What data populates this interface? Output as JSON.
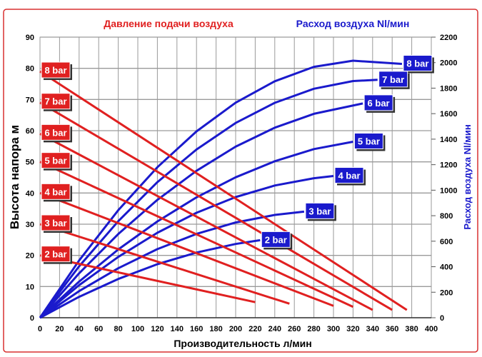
{
  "chart_data": {
    "type": "line",
    "title_left": "Давление подачи воздуха",
    "title_right": "Расход воздуха Nl/мин",
    "xlabel": "Производительность л/мин",
    "ylabel": "Высота напора м",
    "y2label": "Расход воздуха Nl/мин",
    "xlim": [
      0,
      400
    ],
    "ylim": [
      0,
      90
    ],
    "y2lim": [
      0,
      2200
    ],
    "grid": true,
    "x_ticks": [
      0,
      20,
      40,
      60,
      80,
      100,
      120,
      140,
      160,
      180,
      200,
      220,
      240,
      260,
      280,
      300,
      320,
      340,
      360,
      380,
      400
    ],
    "y_ticks": [
      0,
      10,
      20,
      30,
      40,
      50,
      60,
      70,
      80,
      90
    ],
    "y2_ticks": [
      0,
      200,
      400,
      600,
      800,
      1000,
      1200,
      1400,
      1600,
      1800,
      2000,
      2200
    ],
    "colors": {
      "head": "#e02020",
      "air": "#1a1acc",
      "frame": "#d83030"
    },
    "head_series": [
      {
        "name": "8 bar",
        "points": [
          [
            0,
            79
          ],
          [
            375,
            2.5
          ]
        ]
      },
      {
        "name": "7 bar",
        "points": [
          [
            0,
            69
          ],
          [
            360,
            2.5
          ]
        ]
      },
      {
        "name": "6 bar",
        "points": [
          [
            0,
            59
          ],
          [
            340,
            2.5
          ]
        ]
      },
      {
        "name": "5 bar",
        "points": [
          [
            0,
            50
          ],
          [
            320,
            3.5
          ]
        ]
      },
      {
        "name": "4 bar",
        "points": [
          [
            0,
            40
          ],
          [
            300,
            3.8
          ]
        ]
      },
      {
        "name": "3 bar",
        "points": [
          [
            0,
            30
          ],
          [
            255,
            4.5
          ]
        ]
      },
      {
        "name": "2 bar",
        "points": [
          [
            0,
            20
          ],
          [
            220,
            5
          ]
        ]
      }
    ],
    "air_series": [
      {
        "name": "8 bar",
        "points": [
          [
            0,
            0
          ],
          [
            40,
            449
          ],
          [
            80,
            843
          ],
          [
            120,
            1180
          ],
          [
            160,
            1461
          ],
          [
            200,
            1686
          ],
          [
            240,
            1854
          ],
          [
            280,
            1967
          ],
          [
            320,
            2015
          ],
          [
            370,
            1990
          ]
        ]
      },
      {
        "name": "7 bar",
        "points": [
          [
            0,
            0
          ],
          [
            40,
            403
          ],
          [
            80,
            757
          ],
          [
            120,
            1063
          ],
          [
            160,
            1319
          ],
          [
            200,
            1527
          ],
          [
            240,
            1685
          ],
          [
            280,
            1795
          ],
          [
            320,
            1856
          ],
          [
            345,
            1865
          ]
        ]
      },
      {
        "name": "6 bar",
        "points": [
          [
            0,
            0
          ],
          [
            40,
            348
          ],
          [
            80,
            656
          ],
          [
            120,
            924
          ],
          [
            160,
            1152
          ],
          [
            200,
            1341
          ],
          [
            240,
            1490
          ],
          [
            280,
            1599
          ],
          [
            330,
            1680
          ]
        ]
      },
      {
        "name": "5 bar",
        "points": [
          [
            0,
            0
          ],
          [
            40,
            283
          ],
          [
            80,
            535
          ],
          [
            120,
            755
          ],
          [
            160,
            944
          ],
          [
            200,
            1101
          ],
          [
            240,
            1227
          ],
          [
            280,
            1322
          ],
          [
            320,
            1380
          ]
        ]
      },
      {
        "name": "4 bar",
        "points": [
          [
            0,
            0
          ],
          [
            40,
            255
          ],
          [
            80,
            477
          ],
          [
            120,
            666
          ],
          [
            160,
            823
          ],
          [
            200,
            946
          ],
          [
            240,
            1037
          ],
          [
            280,
            1094
          ],
          [
            300,
            1111
          ]
        ]
      },
      {
        "name": "3 bar",
        "points": [
          [
            0,
            0
          ],
          [
            40,
            209
          ],
          [
            80,
            388
          ],
          [
            120,
            538
          ],
          [
            160,
            657
          ],
          [
            200,
            747
          ],
          [
            240,
            806
          ],
          [
            270,
            832
          ]
        ]
      },
      {
        "name": "2 bar",
        "points": [
          [
            0,
            0
          ],
          [
            40,
            164
          ],
          [
            80,
            304
          ],
          [
            120,
            420
          ],
          [
            160,
            511
          ],
          [
            200,
            578
          ],
          [
            225,
            608
          ]
        ]
      }
    ]
  }
}
